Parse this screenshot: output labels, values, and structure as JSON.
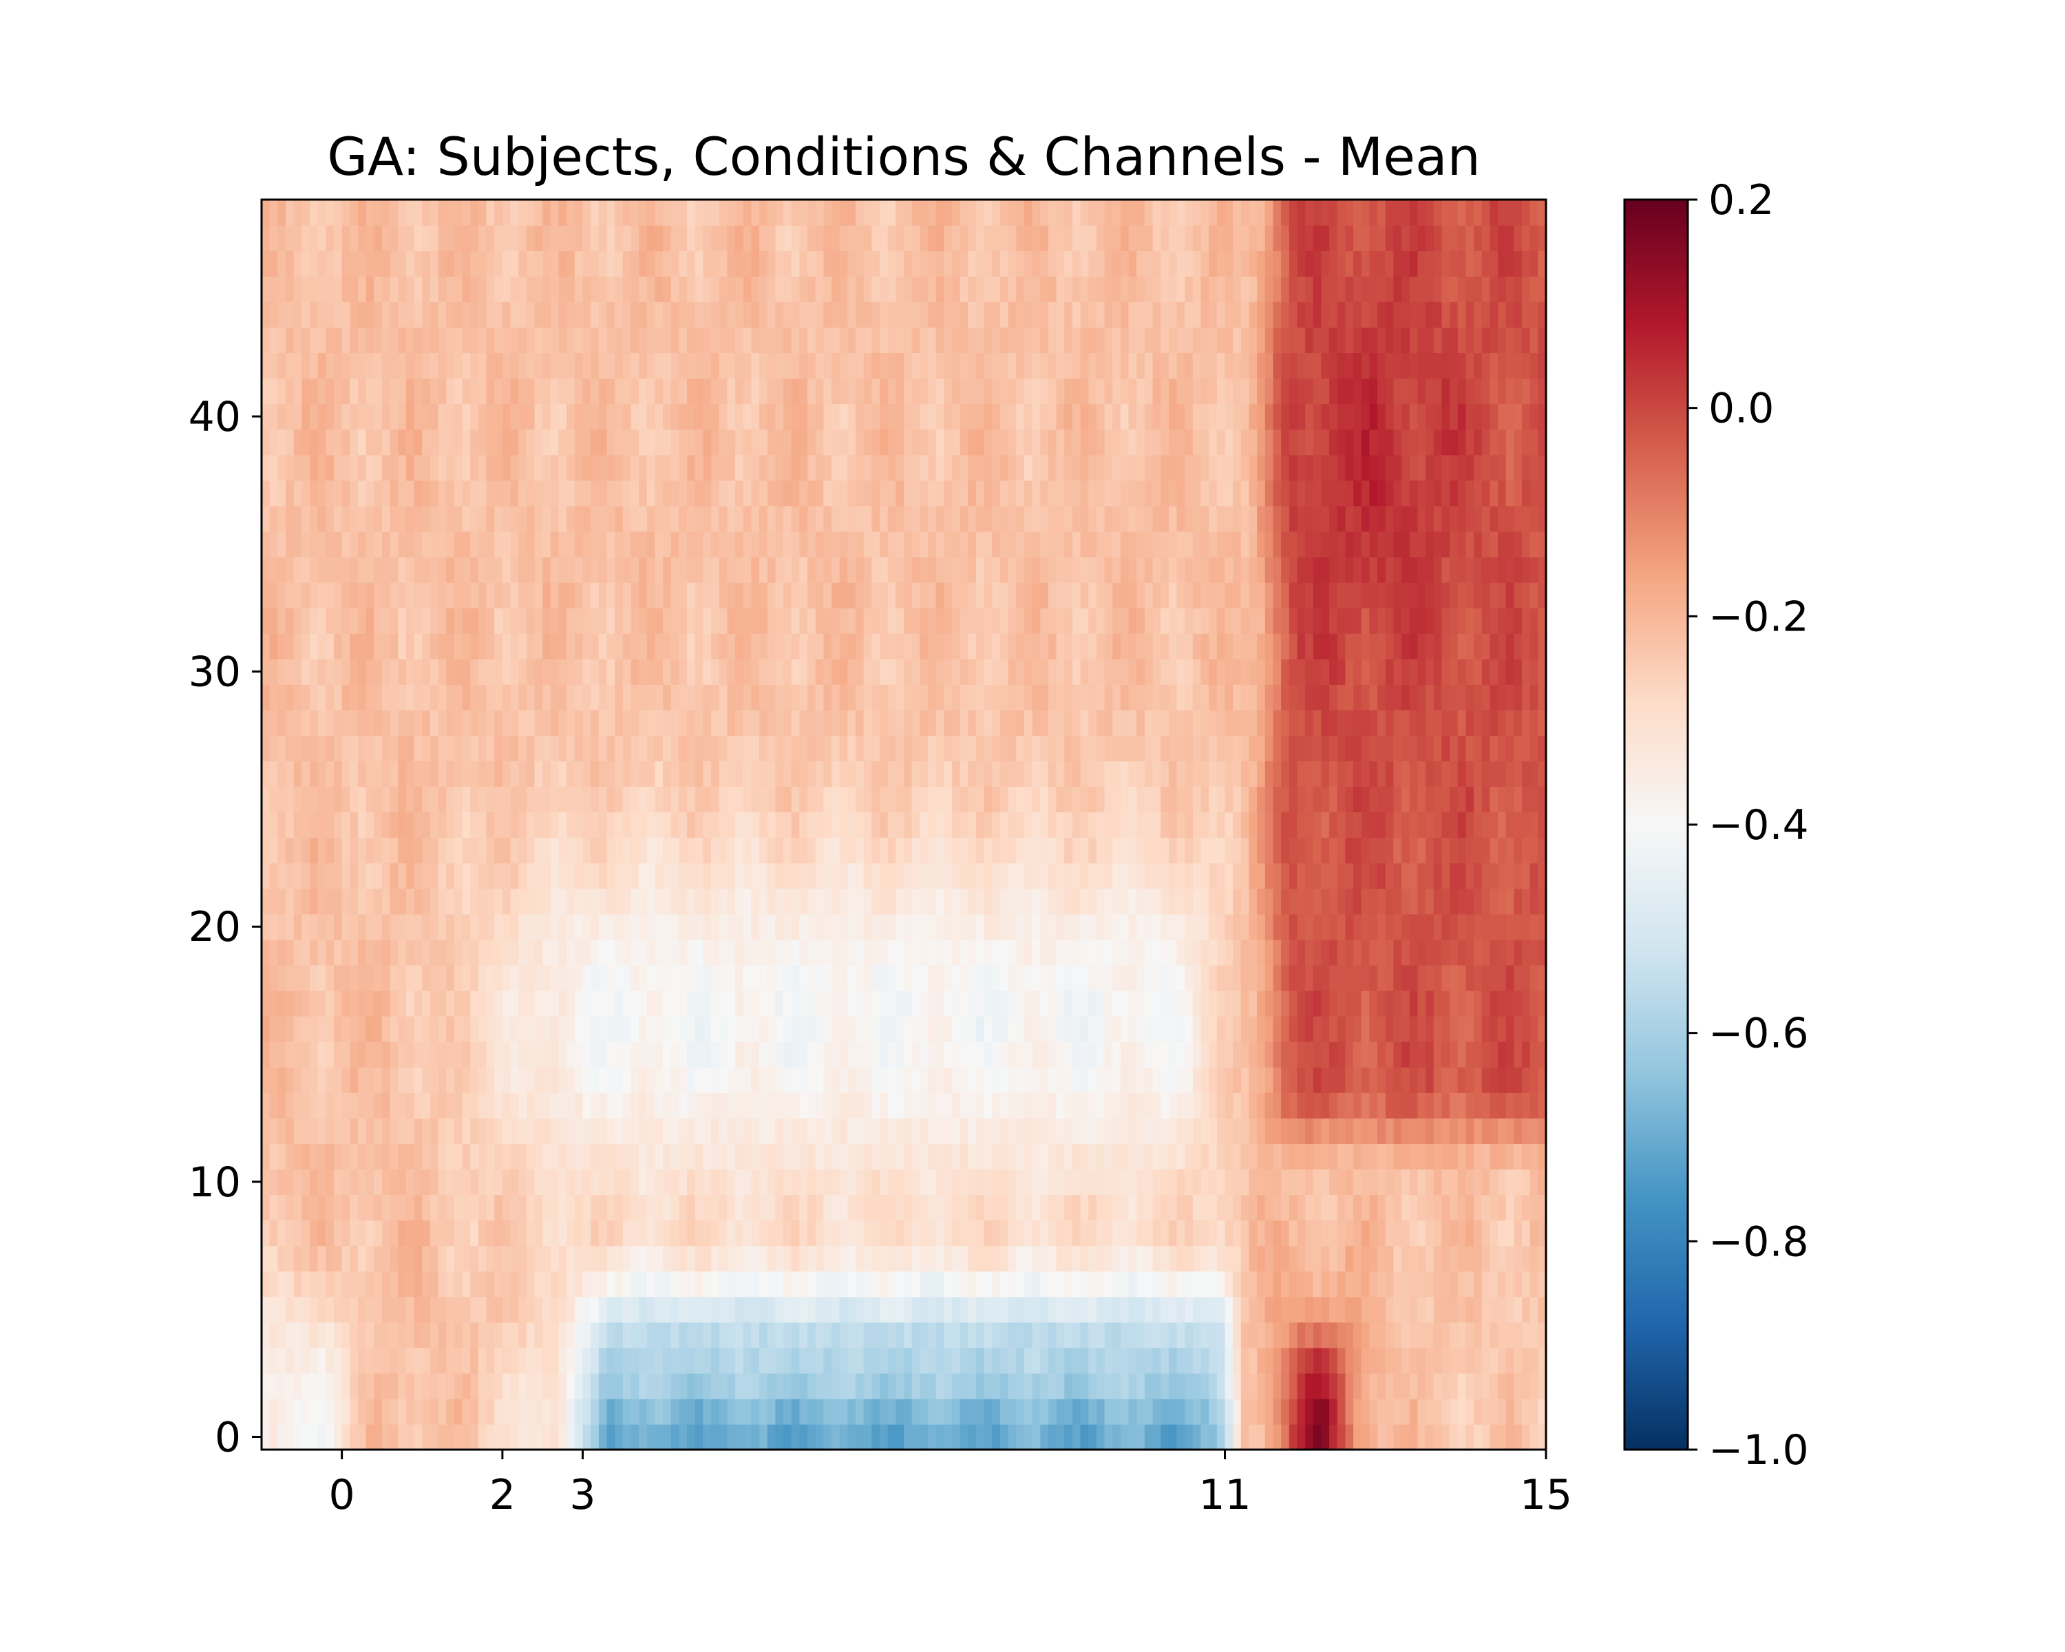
{
  "chart_data": {
    "type": "heatmap",
    "title": "GA: Subjects, Conditions & Channels - Mean",
    "xlabel": "",
    "ylabel": "",
    "xlim": [
      -1,
      15
    ],
    "ylim": [
      -0.5,
      48.5
    ],
    "x_ticks": [
      0,
      2,
      3,
      11,
      15
    ],
    "y_ticks": [
      0,
      10,
      20,
      30,
      40
    ],
    "n_cols": 160,
    "n_rows": 49,
    "colormap": "RdBu_r",
    "colorbar": {
      "vmin": -1.0,
      "vmax": 0.2,
      "ticks": [
        0.2,
        0.0,
        -0.2,
        -0.4,
        -0.6,
        -0.8,
        -1.0
      ],
      "tick_labels": [
        "0.2",
        "0.0",
        "−0.2",
        "−0.4",
        "−0.6",
        "−0.8",
        "−1.0"
      ]
    },
    "grid": false,
    "value_profile": {
      "baseline_low_y_before_0": -0.38,
      "baseline_high_y": -0.22,
      "mid_band_y_14_to_24_x_3_to_11": -0.38,
      "low_y_0_to_7_x_3_to_11": -0.62,
      "low_y_0_x_3_to_11": -0.74,
      "late_high_y_x_11_5_to_15": -0.02,
      "peak_y_0_to_5_x_12_to_12_5": 0.12
    }
  }
}
